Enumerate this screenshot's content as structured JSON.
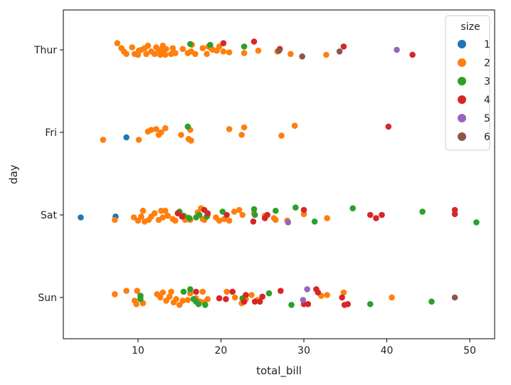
{
  "chart_data": {
    "type": "scatter",
    "title": "",
    "xlabel": "total_bill",
    "ylabel": "day",
    "xlim": [
      1.0,
      53.0
    ],
    "x_ticks": [
      10,
      20,
      30,
      40,
      50
    ],
    "categories": [
      "Thur",
      "Fri",
      "Sat",
      "Sun"
    ],
    "grid": false,
    "legend": {
      "title": "size",
      "placement": "top-right",
      "entries": [
        {
          "label": "1",
          "color": "#1f77b4"
        },
        {
          "label": "2",
          "color": "#ff7f0e"
        },
        {
          "label": "3",
          "color": "#2ca02c"
        },
        {
          "label": "4",
          "color": "#d62728"
        },
        {
          "label": "5",
          "color": "#9467bd"
        },
        {
          "label": "6",
          "color": "#8c564b"
        }
      ]
    },
    "series": [
      {
        "name": "Thur",
        "points": [
          [
            7.5,
            2,
            -0.08
          ],
          [
            8.0,
            2,
            -0.02
          ],
          [
            8.3,
            2,
            0.02
          ],
          [
            8.6,
            2,
            0.05
          ],
          [
            9.3,
            2,
            -0.03
          ],
          [
            9.6,
            2,
            0.05
          ],
          [
            10.0,
            2,
            0.06
          ],
          [
            10.1,
            2,
            0.01
          ],
          [
            10.4,
            2,
            0.0
          ],
          [
            10.8,
            2,
            -0.02
          ],
          [
            11.0,
            2,
            0.05
          ],
          [
            11.2,
            2,
            -0.05
          ],
          [
            11.6,
            2,
            0.02
          ],
          [
            12.0,
            2,
            0.05
          ],
          [
            12.2,
            2,
            -0.03
          ],
          [
            12.5,
            2,
            0.0
          ],
          [
            12.7,
            2,
            0.06
          ],
          [
            13.0,
            2,
            0.02
          ],
          [
            13.0,
            2,
            -0.05
          ],
          [
            13.3,
            2,
            0.06
          ],
          [
            13.4,
            2,
            -0.01
          ],
          [
            14.0,
            2,
            0.05
          ],
          [
            14.2,
            2,
            -0.02
          ],
          [
            14.5,
            2,
            0.04
          ],
          [
            15.4,
            2,
            -0.01
          ],
          [
            16.0,
            2,
            0.04
          ],
          [
            16.4,
            2,
            0.02
          ],
          [
            16.5,
            2,
            -0.06
          ],
          [
            16.9,
            2,
            0.05
          ],
          [
            17.8,
            2,
            -0.02
          ],
          [
            18.3,
            2,
            0.05
          ],
          [
            18.5,
            2,
            -0.04
          ],
          [
            18.8,
            2,
            -0.02
          ],
          [
            19.0,
            2,
            0.0
          ],
          [
            19.5,
            2,
            0.01
          ],
          [
            19.8,
            2,
            -0.04
          ],
          [
            20.3,
            2,
            0.02
          ],
          [
            21.0,
            2,
            0.03
          ],
          [
            22.8,
            2,
            0.04
          ],
          [
            24.5,
            2,
            0.01
          ],
          [
            26.8,
            2,
            0.02
          ],
          [
            28.4,
            2,
            0.05
          ],
          [
            32.7,
            2,
            0.06
          ],
          [
            16.3,
            3,
            -0.07
          ],
          [
            18.7,
            3,
            -0.06
          ],
          [
            22.8,
            3,
            -0.04
          ],
          [
            20.3,
            4,
            -0.08
          ],
          [
            24.0,
            4,
            -0.1
          ],
          [
            27.1,
            4,
            -0.01
          ],
          [
            34.8,
            4,
            -0.04
          ],
          [
            43.1,
            4,
            0.06
          ],
          [
            41.2,
            5,
            0.0
          ],
          [
            27.0,
            6,
            0.01
          ],
          [
            29.8,
            6,
            0.08
          ],
          [
            34.3,
            6,
            0.02
          ]
        ]
      },
      {
        "name": "Fri",
        "points": [
          [
            8.6,
            1,
            0.06
          ],
          [
            5.8,
            2,
            0.09
          ],
          [
            10.1,
            2,
            0.09
          ],
          [
            11.2,
            2,
            -0.01
          ],
          [
            11.6,
            2,
            -0.03
          ],
          [
            12.2,
            2,
            -0.04
          ],
          [
            12.5,
            2,
            0.03
          ],
          [
            12.8,
            2,
            0.0
          ],
          [
            13.3,
            2,
            -0.05
          ],
          [
            15.2,
            2,
            0.03
          ],
          [
            16.1,
            2,
            0.08
          ],
          [
            16.3,
            2,
            -0.03
          ],
          [
            16.4,
            2,
            0.1
          ],
          [
            21.0,
            2,
            -0.04
          ],
          [
            22.5,
            2,
            0.03
          ],
          [
            22.8,
            2,
            -0.06
          ],
          [
            27.3,
            2,
            0.04
          ],
          [
            28.9,
            2,
            -0.08
          ],
          [
            16.0,
            3,
            -0.07
          ],
          [
            40.2,
            4,
            -0.07
          ]
        ]
      },
      {
        "name": "Sat",
        "points": [
          [
            3.1,
            1,
            0.03
          ],
          [
            7.3,
            1,
            0.02
          ],
          [
            7.2,
            2,
            0.06
          ],
          [
            9.5,
            2,
            0.03
          ],
          [
            10.0,
            2,
            0.07
          ],
          [
            10.4,
            2,
            0.02
          ],
          [
            10.6,
            2,
            -0.05
          ],
          [
            10.8,
            2,
            0.08
          ],
          [
            11.3,
            2,
            0.06
          ],
          [
            11.6,
            2,
            0.02
          ],
          [
            12.0,
            2,
            -0.02
          ],
          [
            12.5,
            2,
            0.06
          ],
          [
            12.8,
            2,
            -0.05
          ],
          [
            13.0,
            2,
            0.03
          ],
          [
            13.3,
            2,
            -0.05
          ],
          [
            13.6,
            2,
            0.01
          ],
          [
            14.2,
            2,
            0.05
          ],
          [
            14.5,
            2,
            0.07
          ],
          [
            15.0,
            2,
            -0.02
          ],
          [
            15.7,
            2,
            0.06
          ],
          [
            16.0,
            2,
            0.03
          ],
          [
            16.3,
            2,
            0.06
          ],
          [
            17.2,
            2,
            -0.03
          ],
          [
            17.6,
            2,
            -0.08
          ],
          [
            17.8,
            2,
            0.05
          ],
          [
            18.0,
            2,
            0.06
          ],
          [
            18.4,
            2,
            0.0
          ],
          [
            19.4,
            2,
            0.03
          ],
          [
            19.8,
            2,
            0.07
          ],
          [
            20.4,
            2,
            0.05
          ],
          [
            21.0,
            2,
            0.07
          ],
          [
            21.6,
            2,
            -0.04
          ],
          [
            22.2,
            2,
            -0.06
          ],
          [
            22.6,
            2,
            0.0
          ],
          [
            24.0,
            2,
            -0.02
          ],
          [
            25.3,
            2,
            0.01
          ],
          [
            26.4,
            2,
            0.04
          ],
          [
            26.6,
            2,
            0.06
          ],
          [
            28.0,
            2,
            0.07
          ],
          [
            30.0,
            2,
            -0.01
          ],
          [
            32.8,
            2,
            0.04
          ],
          [
            15.0,
            3,
            -0.04
          ],
          [
            15.5,
            3,
            0.01
          ],
          [
            16.2,
            3,
            0.04
          ],
          [
            17.0,
            3,
            0.03
          ],
          [
            17.4,
            3,
            0.0
          ],
          [
            18.3,
            3,
            0.02
          ],
          [
            20.2,
            3,
            -0.04
          ],
          [
            24.0,
            3,
            -0.07
          ],
          [
            24.1,
            3,
            0.0
          ],
          [
            26.6,
            3,
            -0.05
          ],
          [
            29.0,
            3,
            -0.09
          ],
          [
            31.3,
            3,
            0.08
          ],
          [
            35.9,
            3,
            -0.08
          ],
          [
            44.3,
            3,
            -0.04
          ],
          [
            50.8,
            3,
            0.09
          ],
          [
            14.8,
            4,
            -0.02
          ],
          [
            15.3,
            4,
            0.02
          ],
          [
            18.0,
            4,
            -0.06
          ],
          [
            18.4,
            4,
            -0.02
          ],
          [
            20.7,
            4,
            0.0
          ],
          [
            23.9,
            4,
            0.08
          ],
          [
            25.3,
            4,
            0.04
          ],
          [
            25.6,
            4,
            0.0
          ],
          [
            30.0,
            4,
            -0.06
          ],
          [
            38.0,
            4,
            0.0
          ],
          [
            38.7,
            4,
            0.04
          ],
          [
            39.4,
            4,
            0.0
          ],
          [
            48.2,
            4,
            -0.06
          ],
          [
            48.2,
            4,
            -0.01
          ],
          [
            28.1,
            5,
            0.09
          ]
        ]
      },
      {
        "name": "Sun",
        "points": [
          [
            7.2,
            2,
            -0.04
          ],
          [
            8.6,
            2,
            -0.08
          ],
          [
            9.6,
            2,
            0.04
          ],
          [
            9.8,
            2,
            0.08
          ],
          [
            9.9,
            2,
            -0.08
          ],
          [
            10.3,
            2,
            -0.02
          ],
          [
            10.6,
            2,
            0.07
          ],
          [
            12.3,
            2,
            -0.04
          ],
          [
            12.7,
            2,
            0.0
          ],
          [
            13.0,
            2,
            -0.06
          ],
          [
            13.4,
            2,
            0.04
          ],
          [
            13.8,
            2,
            -0.01
          ],
          [
            14.0,
            2,
            -0.07
          ],
          [
            14.3,
            2,
            0.06
          ],
          [
            14.6,
            2,
            0.02
          ],
          [
            15.0,
            2,
            0.09
          ],
          [
            15.4,
            2,
            0.04
          ],
          [
            16.0,
            2,
            0.03
          ],
          [
            16.3,
            2,
            -0.05
          ],
          [
            17.0,
            2,
            0.01
          ],
          [
            17.5,
            2,
            0.05
          ],
          [
            17.8,
            2,
            -0.07
          ],
          [
            18.0,
            2,
            0.06
          ],
          [
            18.4,
            2,
            0.02
          ],
          [
            20.7,
            2,
            -0.07
          ],
          [
            21.7,
            2,
            0.0
          ],
          [
            22.5,
            2,
            0.07
          ],
          [
            23.0,
            2,
            0.02
          ],
          [
            23.7,
            2,
            -0.03
          ],
          [
            24.4,
            2,
            0.03
          ],
          [
            32.1,
            2,
            -0.02
          ],
          [
            32.8,
            2,
            -0.03
          ],
          [
            34.8,
            2,
            -0.06
          ],
          [
            40.6,
            2,
            0.0
          ],
          [
            10.3,
            3,
            -0.02
          ],
          [
            10.3,
            3,
            0.02
          ],
          [
            15.5,
            3,
            -0.07
          ],
          [
            16.3,
            3,
            -0.1
          ],
          [
            16.7,
            3,
            0.02
          ],
          [
            17.0,
            3,
            0.05
          ],
          [
            17.3,
            3,
            0.08
          ],
          [
            18.1,
            3,
            0.09
          ],
          [
            22.6,
            3,
            0.01
          ],
          [
            25.8,
            3,
            -0.05
          ],
          [
            28.5,
            3,
            0.09
          ],
          [
            38.0,
            3,
            0.08
          ],
          [
            45.4,
            3,
            0.05
          ],
          [
            17.0,
            4,
            -0.07
          ],
          [
            19.8,
            4,
            0.01
          ],
          [
            20.6,
            4,
            0.02
          ],
          [
            21.4,
            4,
            -0.07
          ],
          [
            22.8,
            4,
            0.05
          ],
          [
            23.0,
            4,
            -0.03
          ],
          [
            24.1,
            4,
            0.05
          ],
          [
            24.7,
            4,
            0.05
          ],
          [
            25.0,
            4,
            -0.01
          ],
          [
            27.2,
            4,
            -0.08
          ],
          [
            30.0,
            4,
            0.08
          ],
          [
            30.5,
            4,
            0.08
          ],
          [
            31.5,
            4,
            -0.1
          ],
          [
            31.7,
            4,
            -0.06
          ],
          [
            34.6,
            4,
            0.0
          ],
          [
            34.9,
            4,
            0.09
          ],
          [
            35.3,
            4,
            0.08
          ],
          [
            29.9,
            5,
            0.03
          ],
          [
            30.4,
            5,
            -0.1
          ],
          [
            48.2,
            6,
            0.0
          ]
        ]
      }
    ]
  }
}
